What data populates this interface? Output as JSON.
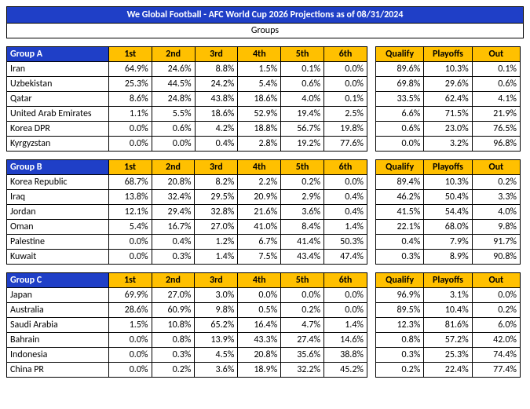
{
  "title": "We Global Football - AFC World Cup 2026 Projections as of 08/31/2024",
  "groups_label": "Groups",
  "colors": {
    "header_bg": "#1f3fc7",
    "header_fg": "#ffffff",
    "highlight_bg": "#ffc000",
    "border": "#000000",
    "bg": "#ffffff"
  },
  "position_headers": [
    "1st",
    "2nd",
    "3rd",
    "4th",
    "5th",
    "6th"
  ],
  "outcome_headers": [
    "Qualify",
    "Playoffs",
    "Out"
  ],
  "groups": [
    {
      "name": "Group A",
      "teams": [
        {
          "name": "Iran",
          "pos": [
            "64.9%",
            "24.6%",
            "8.8%",
            "1.5%",
            "0.1%",
            "0.0%"
          ],
          "out": [
            "89.6%",
            "10.3%",
            "0.1%"
          ]
        },
        {
          "name": "Uzbekistan",
          "pos": [
            "25.3%",
            "44.5%",
            "24.2%",
            "5.4%",
            "0.6%",
            "0.0%"
          ],
          "out": [
            "69.8%",
            "29.6%",
            "0.6%"
          ]
        },
        {
          "name": "Qatar",
          "pos": [
            "8.6%",
            "24.8%",
            "43.8%",
            "18.6%",
            "4.0%",
            "0.1%"
          ],
          "out": [
            "33.5%",
            "62.4%",
            "4.1%"
          ]
        },
        {
          "name": "United Arab Emirates",
          "pos": [
            "1.1%",
            "5.5%",
            "18.6%",
            "52.9%",
            "19.4%",
            "2.5%"
          ],
          "out": [
            "6.6%",
            "71.5%",
            "21.9%"
          ]
        },
        {
          "name": "Korea DPR",
          "pos": [
            "0.0%",
            "0.6%",
            "4.2%",
            "18.8%",
            "56.7%",
            "19.8%"
          ],
          "out": [
            "0.6%",
            "23.0%",
            "76.5%"
          ]
        },
        {
          "name": "Kyrgyzstan",
          "pos": [
            "0.0%",
            "0.0%",
            "0.4%",
            "2.8%",
            "19.2%",
            "77.6%"
          ],
          "out": [
            "0.0%",
            "3.2%",
            "96.8%"
          ]
        }
      ]
    },
    {
      "name": "Group B",
      "teams": [
        {
          "name": "Korea Republic",
          "pos": [
            "68.7%",
            "20.8%",
            "8.2%",
            "2.2%",
            "0.2%",
            "0.0%"
          ],
          "out": [
            "89.4%",
            "10.3%",
            "0.2%"
          ]
        },
        {
          "name": "Iraq",
          "pos": [
            "13.8%",
            "32.4%",
            "29.5%",
            "20.9%",
            "2.9%",
            "0.4%"
          ],
          "out": [
            "46.2%",
            "50.4%",
            "3.3%"
          ]
        },
        {
          "name": "Jordan",
          "pos": [
            "12.1%",
            "29.4%",
            "32.8%",
            "21.6%",
            "3.6%",
            "0.4%"
          ],
          "out": [
            "41.5%",
            "54.4%",
            "4.0%"
          ]
        },
        {
          "name": "Oman",
          "pos": [
            "5.4%",
            "16.7%",
            "27.0%",
            "41.0%",
            "8.4%",
            "1.4%"
          ],
          "out": [
            "22.1%",
            "68.0%",
            "9.8%"
          ]
        },
        {
          "name": "Palestine",
          "pos": [
            "0.0%",
            "0.4%",
            "1.2%",
            "6.7%",
            "41.4%",
            "50.3%"
          ],
          "out": [
            "0.4%",
            "7.9%",
            "91.7%"
          ]
        },
        {
          "name": "Kuwait",
          "pos": [
            "0.0%",
            "0.3%",
            "1.4%",
            "7.5%",
            "43.4%",
            "47.4%"
          ],
          "out": [
            "0.3%",
            "8.9%",
            "90.8%"
          ]
        }
      ]
    },
    {
      "name": "Group C",
      "teams": [
        {
          "name": "Japan",
          "pos": [
            "69.9%",
            "27.0%",
            "3.0%",
            "0.0%",
            "0.0%",
            "0.0%"
          ],
          "out": [
            "96.9%",
            "3.1%",
            "0.0%"
          ]
        },
        {
          "name": "Australia",
          "pos": [
            "28.6%",
            "60.9%",
            "9.8%",
            "0.5%",
            "0.2%",
            "0.0%"
          ],
          "out": [
            "89.5%",
            "10.4%",
            "0.2%"
          ]
        },
        {
          "name": "Saudi Arabia",
          "pos": [
            "1.5%",
            "10.8%",
            "65.2%",
            "16.4%",
            "4.7%",
            "1.4%"
          ],
          "out": [
            "12.3%",
            "81.6%",
            "6.0%"
          ]
        },
        {
          "name": "Bahrain",
          "pos": [
            "0.0%",
            "0.8%",
            "13.9%",
            "43.3%",
            "27.4%",
            "14.6%"
          ],
          "out": [
            "0.8%",
            "57.2%",
            "42.0%"
          ]
        },
        {
          "name": "Indonesia",
          "pos": [
            "0.0%",
            "0.3%",
            "4.5%",
            "20.8%",
            "35.6%",
            "38.8%"
          ],
          "out": [
            "0.3%",
            "25.3%",
            "74.4%"
          ]
        },
        {
          "name": "China PR",
          "pos": [
            "0.0%",
            "0.2%",
            "3.6%",
            "18.9%",
            "32.2%",
            "45.2%"
          ],
          "out": [
            "0.2%",
            "22.4%",
            "77.4%"
          ]
        }
      ]
    }
  ]
}
